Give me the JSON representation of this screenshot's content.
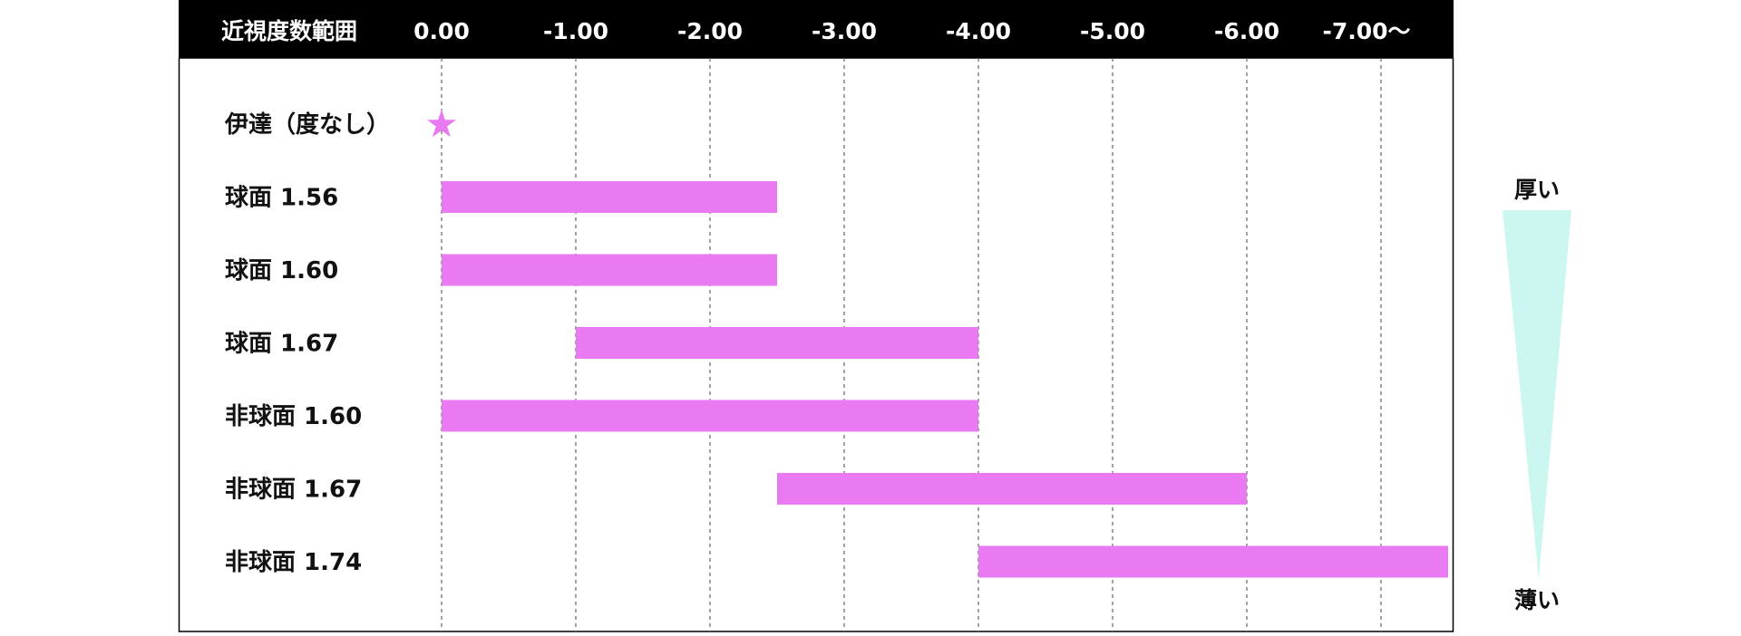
{
  "chart_data": {
    "type": "bar",
    "header_label": "近視度数範囲",
    "ticks": [
      {
        "value": 0,
        "label": "0.00"
      },
      {
        "value": -1,
        "label": "-1.00"
      },
      {
        "value": -2,
        "label": "-2.00"
      },
      {
        "value": -3,
        "label": "-3.00"
      },
      {
        "value": -4,
        "label": "-4.00"
      },
      {
        "value": -5,
        "label": "-5.00"
      },
      {
        "value": -6,
        "label": "-6.00"
      },
      {
        "value": -7,
        "label": "-7.00〜"
      }
    ],
    "xlim": [
      0.5,
      -7.5
    ],
    "grid": true,
    "rows": [
      {
        "label": "伊達（度なし）",
        "marker": "★",
        "value": 0
      },
      {
        "label": "球面 1.56",
        "start": 0,
        "end": -2.5
      },
      {
        "label": "球面 1.60",
        "start": 0,
        "end": -2.5
      },
      {
        "label": "球面 1.67",
        "start": -1,
        "end": -4
      },
      {
        "label": "非球面 1.60",
        "start": 0,
        "end": -4
      },
      {
        "label": "非球面 1.67",
        "start": -2.5,
        "end": -6
      },
      {
        "label": "非球面 1.74",
        "start": -4,
        "end": -7.5
      }
    ],
    "thickness_scale": {
      "top_label": "厚い",
      "bottom_label": "薄い"
    },
    "colors": {
      "bar": "#ea7af2",
      "header_bg": "#000000",
      "header_text": "#ffffff",
      "grid": "#666666",
      "wedge": "#ccf6f0"
    }
  }
}
